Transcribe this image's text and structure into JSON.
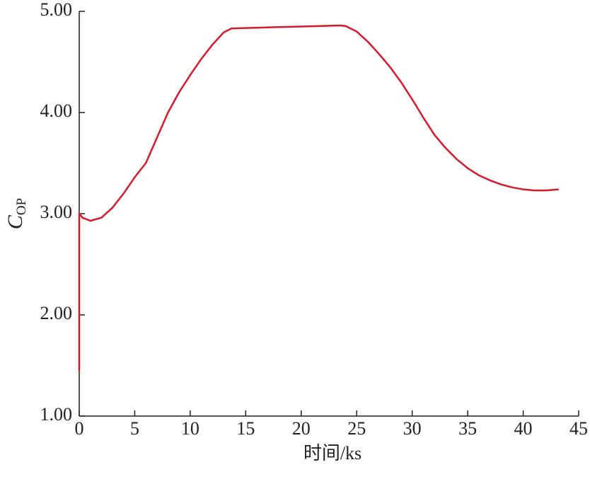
{
  "chart_data": {
    "type": "line",
    "x_label": "时间/ks",
    "y_label": {
      "main": "C",
      "sub": "OP"
    },
    "x": [
      0,
      0,
      0.3,
      1,
      2,
      3,
      4,
      5,
      6,
      7,
      8,
      9,
      10,
      11,
      12,
      13,
      13.7,
      15,
      20,
      23.5,
      24,
      25,
      26,
      27,
      28,
      29,
      30,
      31,
      32,
      33,
      34,
      35,
      36,
      37,
      38,
      39,
      40,
      41,
      42,
      43.2
    ],
    "series": [
      {
        "color": "#d7192b",
        "values": [
          1.44,
          3.0,
          2.96,
          2.93,
          2.96,
          3.06,
          3.2,
          3.36,
          3.5,
          3.75,
          4.0,
          4.2,
          4.37,
          4.53,
          4.67,
          4.79,
          4.83,
          4.835,
          4.85,
          4.86,
          4.855,
          4.8,
          4.7,
          4.58,
          4.45,
          4.3,
          4.13,
          3.95,
          3.78,
          3.65,
          3.54,
          3.45,
          3.38,
          3.33,
          3.29,
          3.26,
          3.24,
          3.23,
          3.23,
          3.24
        ]
      }
    ],
    "xlim": [
      0,
      45
    ],
    "xticks": [
      0,
      5,
      10,
      15,
      20,
      25,
      30,
      35,
      40,
      45
    ],
    "ylim": [
      1,
      5
    ],
    "yticks": [
      {
        "value": 1,
        "label": "1.00"
      },
      {
        "value": 2,
        "label": "2.00"
      },
      {
        "value": 3,
        "label": "3.00"
      },
      {
        "value": 4,
        "label": "4.00"
      },
      {
        "value": 5,
        "label": "5.00"
      }
    ]
  }
}
